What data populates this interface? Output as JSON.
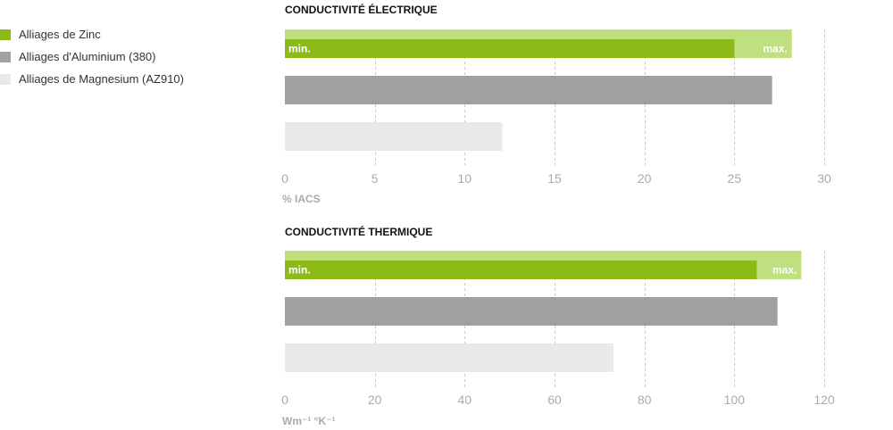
{
  "legend": {
    "placement": "left",
    "items": [
      {
        "label": "Alliages de Zinc",
        "color": "#8cbb17"
      },
      {
        "label": "Alliages d'Aluminium (380)",
        "color": "#a0a0a0"
      },
      {
        "label": "Alliages de Magnesium (AZ910)",
        "color": "#e9e9e9"
      }
    ]
  },
  "chart_data": [
    {
      "type": "bar",
      "orientation": "horizontal",
      "title": "CONDUCTIVITÉ ÉLECTRIQUE",
      "xlabel": "% IACS",
      "xlim": [
        0,
        30
      ],
      "ticks": [
        0,
        5,
        10,
        15,
        20,
        25,
        30
      ],
      "grid": true,
      "range_labels": {
        "min": "min.",
        "max": "max."
      },
      "series": [
        {
          "name": "Alliages de Zinc",
          "min": 25,
          "max": 28.2,
          "color": "#8cbb17",
          "range_color": "#c0df7f"
        },
        {
          "name": "Alliages d'Aluminium (380)",
          "value": 27.1,
          "color": "#a0a0a0"
        },
        {
          "name": "Alliages de Magnesium (AZ910)",
          "value": 12.1,
          "color": "#e9e9e9"
        }
      ]
    },
    {
      "type": "bar",
      "orientation": "horizontal",
      "title": "CONDUCTIVITÉ THERMIQUE",
      "xlabel": "Wm⁻¹ °K⁻¹",
      "xlim": [
        0,
        120
      ],
      "ticks": [
        0,
        20,
        40,
        60,
        80,
        100,
        120
      ],
      "grid": true,
      "range_labels": {
        "min": "min.",
        "max": "max."
      },
      "series": [
        {
          "name": "Alliages de Zinc",
          "min": 105,
          "max": 114.9,
          "color": "#8cbb17",
          "range_color": "#c0df7f"
        },
        {
          "name": "Alliages d'Aluminium (380)",
          "value": 109.6,
          "color": "#a0a0a0"
        },
        {
          "name": "Alliages de Magnesium (AZ910)",
          "value": 73.1,
          "color": "#e9e9e9"
        }
      ]
    }
  ]
}
